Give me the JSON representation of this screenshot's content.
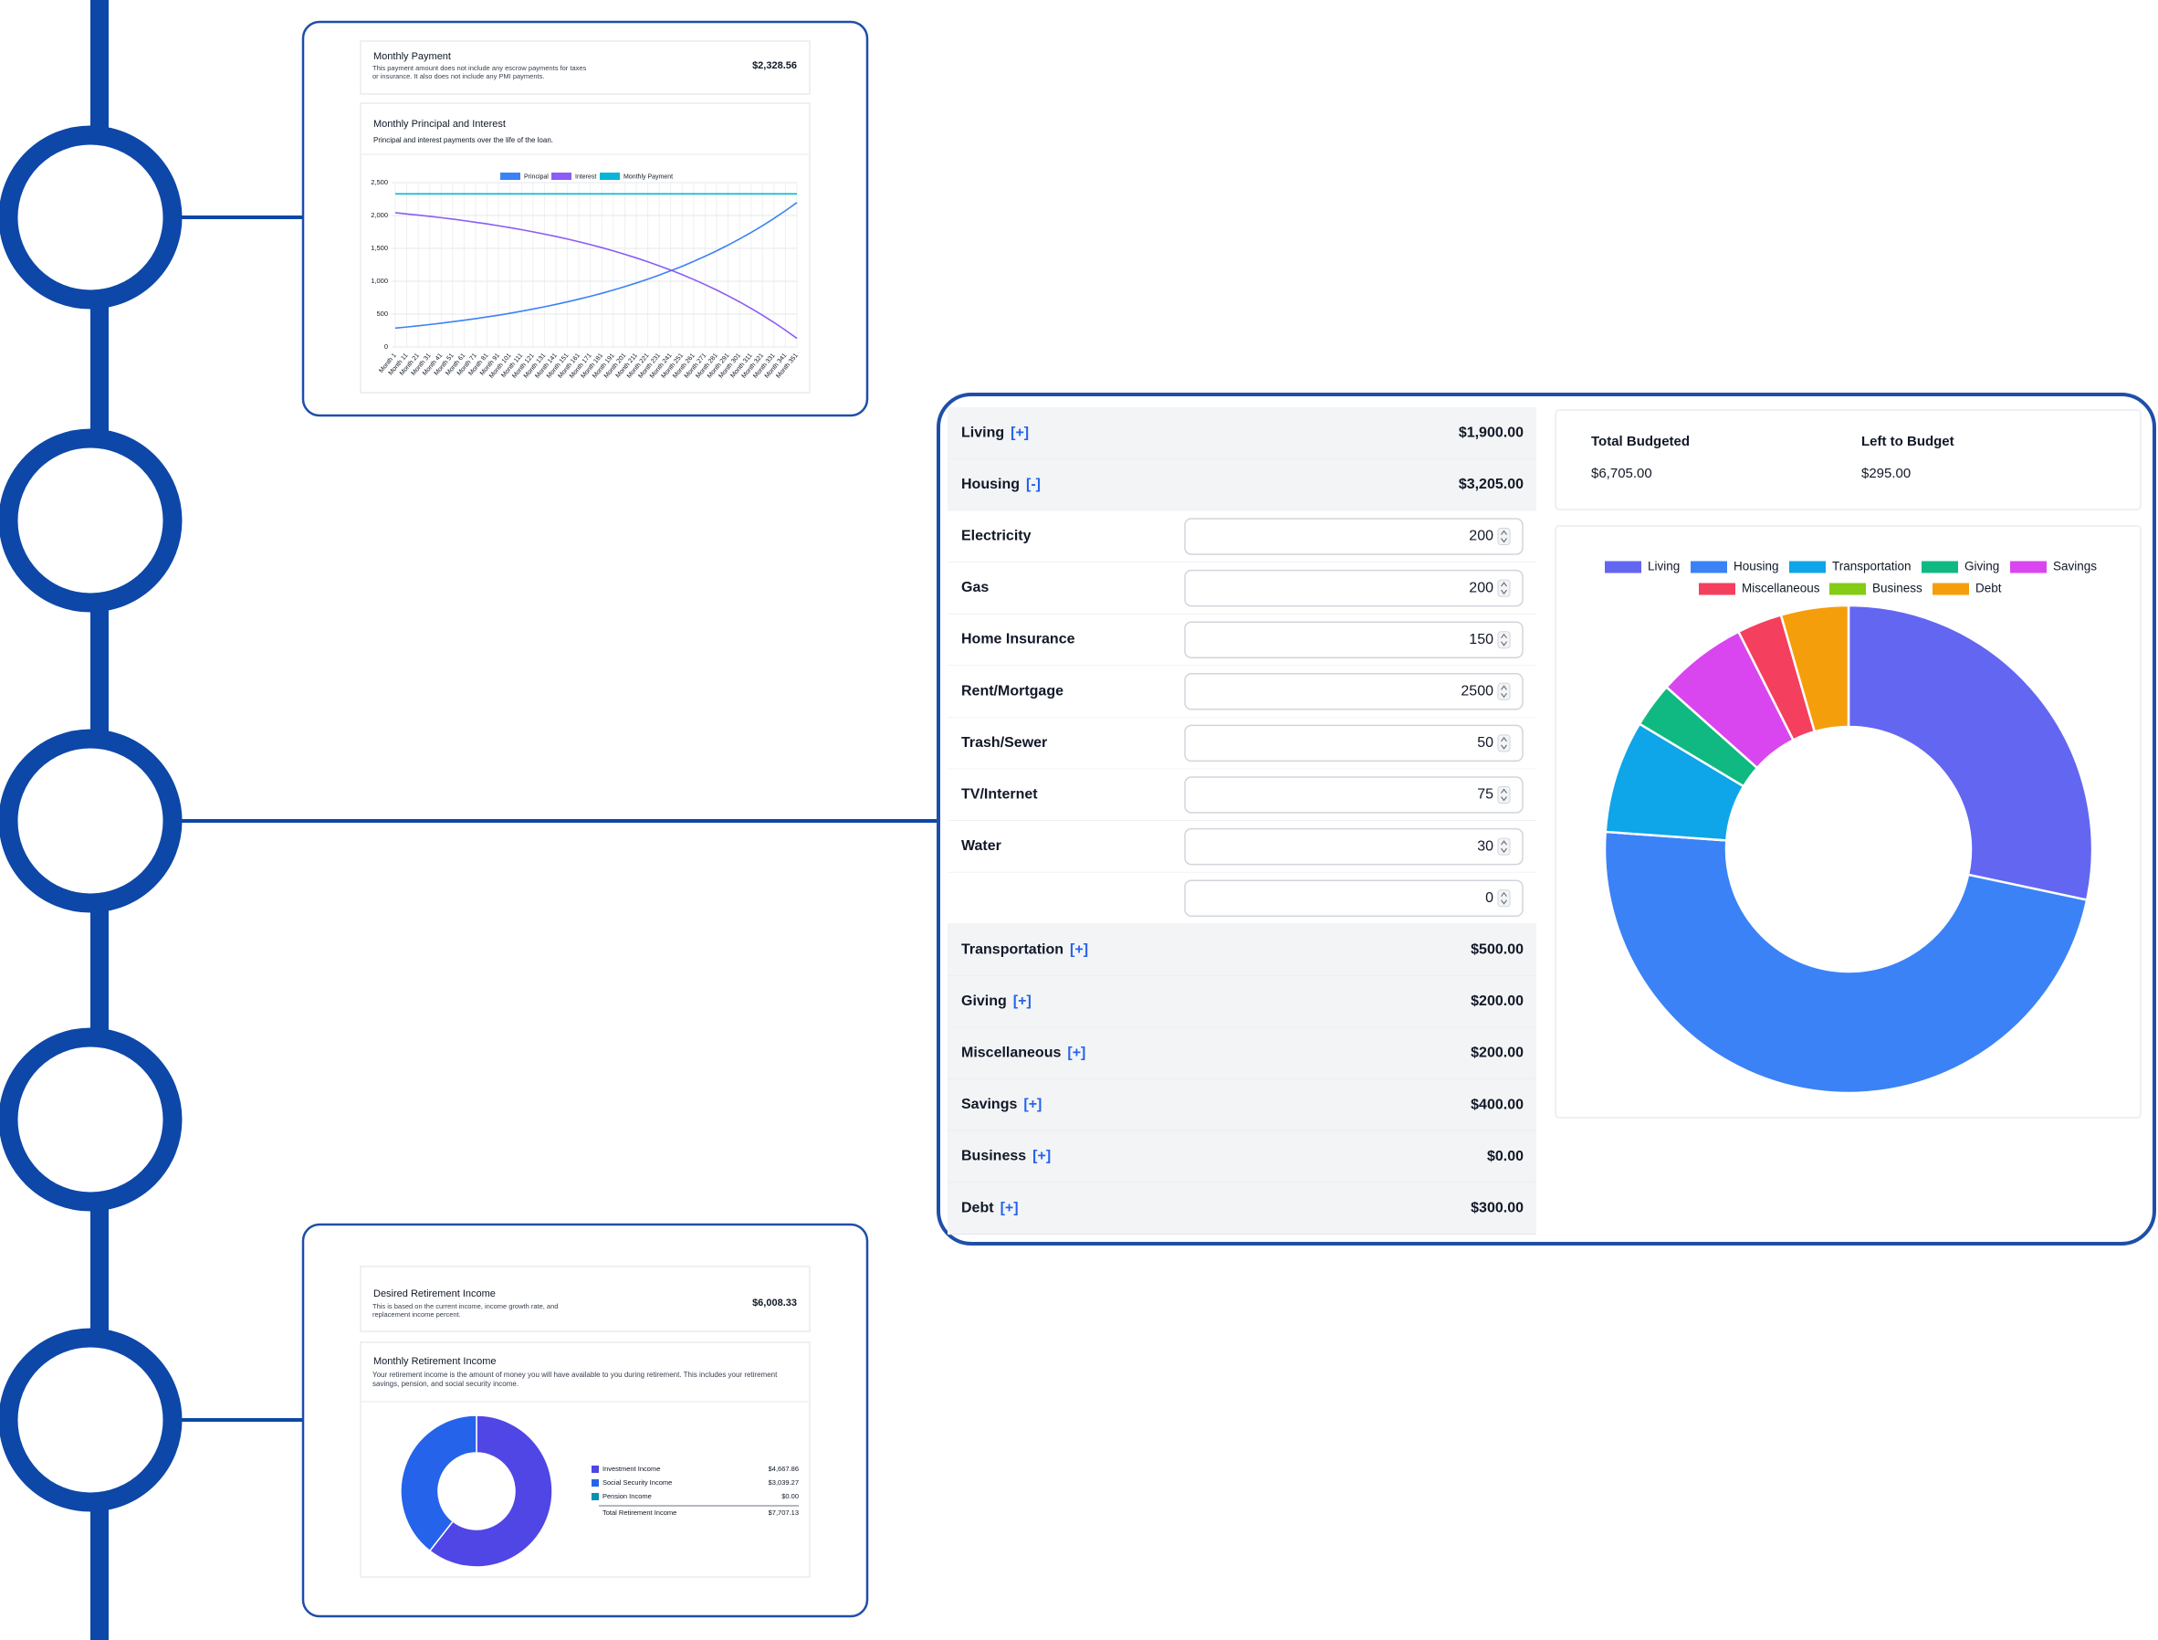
{
  "mortgage": {
    "payment_card": {
      "title": "Monthly Payment",
      "description": "This payment amount does not include any escrow payments for taxes or insurance. It also does not include any PMI payments.",
      "value": "$2,328.56"
    }
  },
  "budget": {
    "rows": [
      {
        "name": "Living",
        "toggle": "[+]",
        "amount": "$1,900.00"
      },
      {
        "name": "Housing",
        "toggle": "[-]",
        "amount": "$3,205.00"
      },
      {
        "name": "Electricity",
        "value": 200
      },
      {
        "name": "Gas",
        "value": 200
      },
      {
        "name": "Home Insurance",
        "value": 150
      },
      {
        "name": "Rent/Mortgage",
        "value": 2500
      },
      {
        "name": "Trash/Sewer",
        "value": 50
      },
      {
        "name": "TV/Internet",
        "value": 75
      },
      {
        "name": "Water",
        "value": 30
      },
      {
        "value": 0
      },
      {
        "name": "Transportation",
        "toggle": "[+]",
        "amount": "$500.00"
      },
      {
        "name": "Giving",
        "toggle": "[+]",
        "amount": "$200.00"
      },
      {
        "name": "Miscellaneous",
        "toggle": "[+]",
        "amount": "$200.00"
      },
      {
        "name": "Savings",
        "toggle": "[+]",
        "amount": "$400.00"
      },
      {
        "name": "Business",
        "toggle": "[+]",
        "amount": "$0.00"
      },
      {
        "name": "Debt",
        "toggle": "[+]",
        "amount": "$300.00"
      }
    ],
    "totals": [
      {
        "label": "Total Budgeted",
        "value": "$6,705.00"
      },
      {
        "label": "Left to Budget",
        "value": "$295.00"
      }
    ]
  },
  "retirement": {
    "desired_card": {
      "title": "Desired Retirement Income",
      "description": "This is based on the current income, income growth rate, and replacement income percent.",
      "value": "$6,008.33"
    }
  },
  "chart_data": [
    {
      "type": "line",
      "title": "Monthly Principal and Interest",
      "subtitle": "Principal and interest payments over the life of the loan.",
      "categories": [
        "Month 1",
        "Month 11",
        "Month 21",
        "Month 31",
        "Month 41",
        "Month 51",
        "Month 61",
        "Month 71",
        "Month 81",
        "Month 91",
        "Month 101",
        "Month 111",
        "Month 121",
        "Month 131",
        "Month 141",
        "Month 151",
        "Month 161",
        "Month 171",
        "Month 181",
        "Month 191",
        "Month 201",
        "Month 211",
        "Month 221",
        "Month 231",
        "Month 241",
        "Month 251",
        "Month 261",
        "Month 271",
        "Month 281",
        "Month 291",
        "Month 301",
        "Month 311",
        "Month 321",
        "Month 331",
        "Month 341",
        "Month 351"
      ],
      "series": [
        {
          "name": "Principal",
          "color": "#3b82f6",
          "values": [
            287,
            304,
            322,
            342,
            362,
            384,
            407,
            431,
            457,
            484,
            513,
            544,
            577,
            611,
            648,
            687,
            728,
            771,
            817,
            866,
            918,
            973,
            1032,
            1093,
            1159,
            1228,
            1302,
            1380,
            1462,
            1550,
            1643,
            1741,
            1845,
            1956,
            2073,
            2197
          ]
        },
        {
          "name": "Interest",
          "color": "#8b5cf6",
          "values": [
            2042,
            2024,
            2006,
            1987,
            1967,
            1945,
            1922,
            1897,
            1872,
            1844,
            1815,
            1785,
            1752,
            1717,
            1681,
            1642,
            1601,
            1557,
            1511,
            1462,
            1410,
            1355,
            1297,
            1235,
            1170,
            1100,
            1027,
            949,
            866,
            779,
            686,
            587,
            483,
            373,
            255,
            131
          ]
        },
        {
          "name": "Monthly Payment",
          "color": "#06b6d4",
          "values": [
            2328.56,
            2328.56,
            2328.56,
            2328.56,
            2328.56,
            2328.56,
            2328.56,
            2328.56,
            2328.56,
            2328.56,
            2328.56,
            2328.56,
            2328.56,
            2328.56,
            2328.56,
            2328.56,
            2328.56,
            2328.56,
            2328.56,
            2328.56,
            2328.56,
            2328.56,
            2328.56,
            2328.56,
            2328.56,
            2328.56,
            2328.56,
            2328.56,
            2328.56,
            2328.56,
            2328.56,
            2328.56,
            2328.56,
            2328.56,
            2328.56,
            2328.56
          ]
        }
      ],
      "ylim": [
        0,
        2500
      ],
      "yticks": [
        0,
        500,
        {
          "value": 1000,
          "label": "1,000"
        },
        {
          "value": 1500,
          "label": "1,500"
        },
        {
          "value": 2000,
          "label": "2,000"
        },
        {
          "value": 2500,
          "label": "2,500"
        }
      ],
      "grid": true,
      "legend": "top"
    },
    {
      "type": "donut",
      "categories": [
        "Living",
        "Housing",
        "Transportation",
        "Giving",
        "Savings",
        "Miscellaneous",
        "Business",
        "Debt"
      ],
      "values": [
        1900,
        3205,
        500,
        200,
        400,
        200,
        0,
        300
      ],
      "colors": [
        "#6366f1",
        "#3b82f6",
        "#0ea5e9",
        "#10b981",
        "#d946ef",
        "#f43f5e",
        "#84cc16",
        "#f59e0b"
      ],
      "legend": "top"
    },
    {
      "type": "donut",
      "title": "Monthly Retirement Income",
      "subtitle": "Your retirement income is the amount of money you will have available to you during retirement. This includes your retirement savings, pension, and social security income.",
      "categories": [
        "Investment Income",
        "Social Security Income",
        "Pension Income"
      ],
      "values": [
        4667.86,
        3039.27,
        0
      ],
      "value_labels": [
        "$4,667.86",
        "$3,039.27",
        "$0.00"
      ],
      "colors": [
        "#4f46e5",
        "#2563eb",
        "#0891b2"
      ],
      "total": {
        "name": "Total Retirement Income",
        "value_label": "$7,707.13"
      },
      "legend": "right"
    }
  ]
}
